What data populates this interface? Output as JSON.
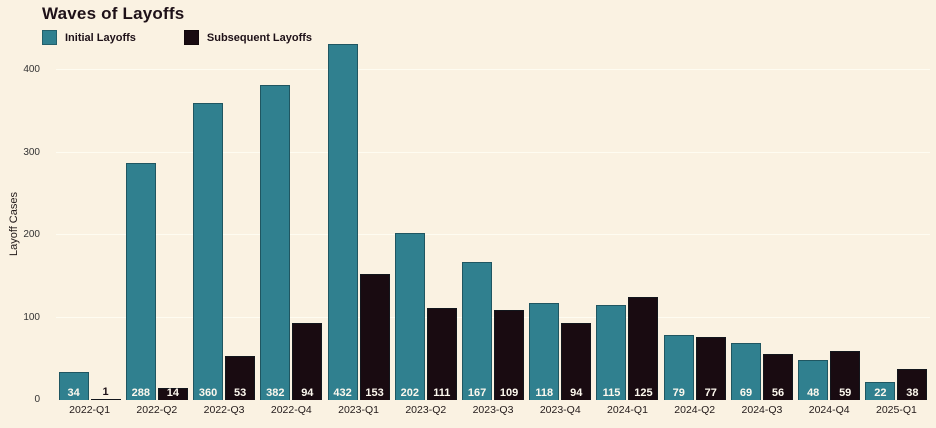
{
  "title": "Waves of Layoffs",
  "legend": [
    {
      "label": "Initial Layoffs",
      "color": "#30808f"
    },
    {
      "label": "Subsequent Layoffs",
      "color": "#190b11"
    }
  ],
  "colors": {
    "background": "#faf2e2",
    "initial_bar": "#30808f",
    "subsequent_bar": "#190b11",
    "text": "#1e1118",
    "gridline": "#fffef5"
  },
  "chart_data": {
    "type": "bar",
    "title": "Waves of Layoffs",
    "categories": [
      "2022-Q1",
      "2022-Q2",
      "2022-Q3",
      "2022-Q4",
      "2023-Q1",
      "2023-Q2",
      "2023-Q3",
      "2023-Q4",
      "2024-Q1",
      "2024-Q2",
      "2024-Q3",
      "2024-Q4",
      "2025-Q1"
    ],
    "series": [
      {
        "name": "Initial Layoffs",
        "color": "#30808f",
        "values": [
          34,
          288,
          360,
          382,
          432,
          202,
          167,
          118,
          115,
          79,
          69,
          48,
          22
        ]
      },
      {
        "name": "Subsequent Layoffs",
        "color": "#190b11",
        "values": [
          1,
          14,
          53,
          94,
          153,
          111,
          109,
          94,
          125,
          77,
          56,
          59,
          38
        ]
      }
    ],
    "xlabel": "",
    "ylabel": "Layoff Cases",
    "yticks": [
      0,
      100,
      200,
      300,
      400
    ],
    "ylim": [
      0,
      433
    ],
    "grid": true,
    "data_labels": true,
    "legend_position": "top-left"
  }
}
